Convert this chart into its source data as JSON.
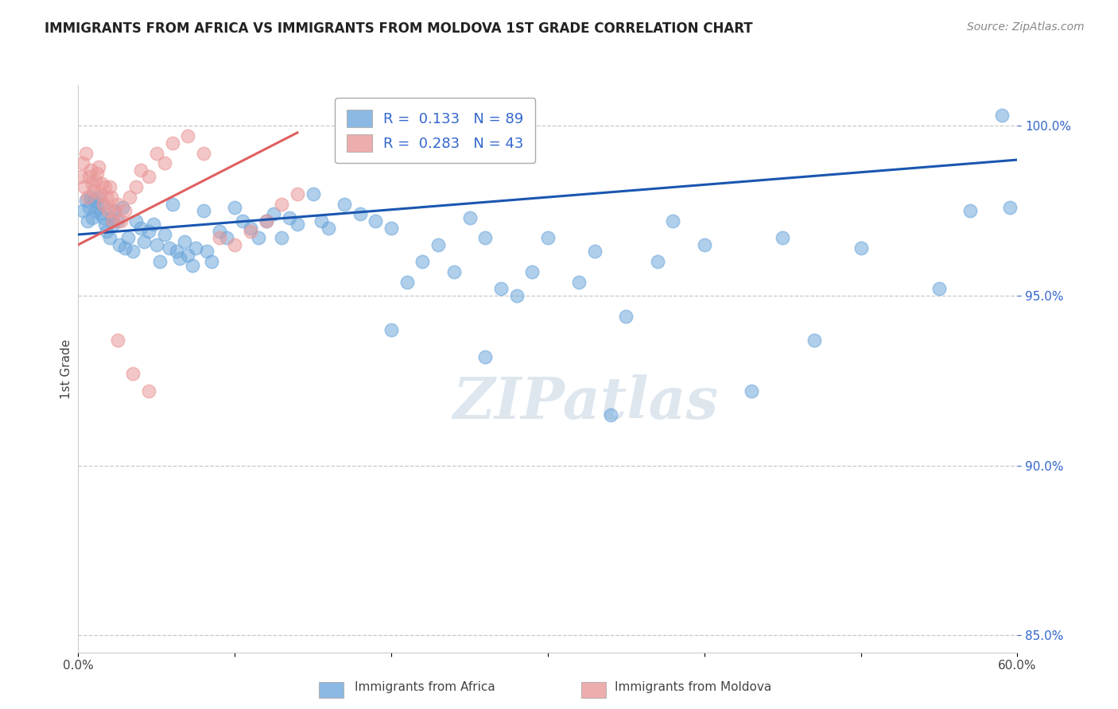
{
  "title": "IMMIGRANTS FROM AFRICA VS IMMIGRANTS FROM MOLDOVA 1ST GRADE CORRELATION CHART",
  "source": "Source: ZipAtlas.com",
  "ylabel": "1st Grade",
  "legend_label_blue": "Immigrants from Africa",
  "legend_label_pink": "Immigrants from Moldova",
  "R_blue": 0.133,
  "N_blue": 89,
  "R_pink": 0.283,
  "N_pink": 43,
  "xlim": [
    0.0,
    60.0
  ],
  "ylim": [
    84.5,
    101.2
  ],
  "xticks": [
    0.0,
    10.0,
    20.0,
    30.0,
    40.0,
    50.0,
    60.0
  ],
  "yticks": [
    85.0,
    90.0,
    95.0,
    100.0
  ],
  "xtick_labels": [
    "0.0%",
    "",
    "",
    "",
    "",
    "",
    "60.0%"
  ],
  "ytick_labels": [
    "85.0%",
    "90.0%",
    "95.0%",
    "100.0%"
  ],
  "watermark": "ZIPatlas",
  "blue_color": "#6fa8dc",
  "pink_color": "#ea9999",
  "trend_blue": "#1a56b0",
  "trend_pink": "#e06060",
  "background_color": "#ffffff",
  "blue_scatter_x": [
    0.3,
    0.5,
    0.6,
    0.7,
    0.8,
    0.9,
    1.0,
    1.1,
    1.2,
    1.3,
    1.4,
    1.5,
    1.6,
    1.7,
    1.8,
    2.0,
    2.1,
    2.2,
    2.3,
    2.5,
    2.6,
    2.8,
    3.0,
    3.2,
    3.5,
    3.7,
    4.0,
    4.2,
    4.5,
    4.8,
    5.0,
    5.2,
    5.5,
    5.8,
    6.0,
    6.3,
    6.5,
    6.8,
    7.0,
    7.3,
    7.5,
    8.0,
    8.2,
    8.5,
    9.0,
    9.5,
    10.0,
    10.5,
    11.0,
    11.5,
    12.0,
    12.5,
    13.0,
    13.5,
    14.0,
    15.0,
    15.5,
    16.0,
    17.0,
    18.0,
    19.0,
    20.0,
    21.0,
    22.0,
    23.0,
    24.0,
    25.0,
    26.0,
    27.0,
    28.0,
    29.0,
    30.0,
    32.0,
    33.0,
    35.0,
    37.0,
    38.0,
    40.0,
    43.0,
    45.0,
    47.0,
    50.0,
    55.0,
    57.0,
    59.0,
    20.0,
    26.0,
    34.0,
    59.5
  ],
  "blue_scatter_y": [
    97.5,
    97.8,
    97.2,
    97.6,
    97.9,
    97.3,
    97.8,
    97.5,
    97.6,
    97.9,
    97.4,
    97.7,
    97.3,
    97.1,
    96.9,
    96.7,
    97.3,
    97.1,
    97.5,
    97.2,
    96.5,
    97.6,
    96.4,
    96.7,
    96.3,
    97.2,
    97.0,
    96.6,
    96.9,
    97.1,
    96.5,
    96.0,
    96.8,
    96.4,
    97.7,
    96.3,
    96.1,
    96.6,
    96.2,
    95.9,
    96.4,
    97.5,
    96.3,
    96.0,
    96.9,
    96.7,
    97.6,
    97.2,
    97.0,
    96.7,
    97.2,
    97.4,
    96.7,
    97.3,
    97.1,
    98.0,
    97.2,
    97.0,
    97.7,
    97.4,
    97.2,
    97.0,
    95.4,
    96.0,
    96.5,
    95.7,
    97.3,
    96.7,
    95.2,
    95.0,
    95.7,
    96.7,
    95.4,
    96.3,
    94.4,
    96.0,
    97.2,
    96.5,
    92.2,
    96.7,
    93.7,
    96.4,
    95.2,
    97.5,
    100.3,
    94.0,
    93.2,
    91.5,
    97.6
  ],
  "pink_scatter_x": [
    0.2,
    0.3,
    0.4,
    0.5,
    0.6,
    0.7,
    0.8,
    0.9,
    1.0,
    1.1,
    1.2,
    1.3,
    1.4,
    1.5,
    1.6,
    1.7,
    1.8,
    1.9,
    2.0,
    2.1,
    2.2,
    2.3,
    2.5,
    2.7,
    3.0,
    3.3,
    3.7,
    4.0,
    4.5,
    5.0,
    5.5,
    6.0,
    7.0,
    8.0,
    9.0,
    10.0,
    11.0,
    12.0,
    13.0,
    14.0,
    2.5,
    3.5,
    4.5
  ],
  "pink_scatter_y": [
    98.5,
    98.9,
    98.2,
    99.2,
    97.9,
    98.5,
    98.7,
    98.3,
    98.1,
    98.4,
    98.6,
    98.8,
    98.0,
    98.3,
    97.7,
    98.2,
    97.9,
    97.5,
    98.2,
    97.9,
    97.2,
    97.5,
    97.7,
    97.2,
    97.5,
    97.9,
    98.2,
    98.7,
    98.5,
    99.2,
    98.9,
    99.5,
    99.7,
    99.2,
    96.7,
    96.5,
    96.9,
    97.2,
    97.7,
    98.0,
    93.7,
    92.7,
    92.2
  ],
  "trend_blue_x0": 0.0,
  "trend_blue_y0": 96.8,
  "trend_blue_x1": 60.0,
  "trend_blue_y1": 99.0,
  "trend_pink_x0": 0.0,
  "trend_pink_y0": 96.5,
  "trend_pink_x1": 14.0,
  "trend_pink_y1": 99.8
}
